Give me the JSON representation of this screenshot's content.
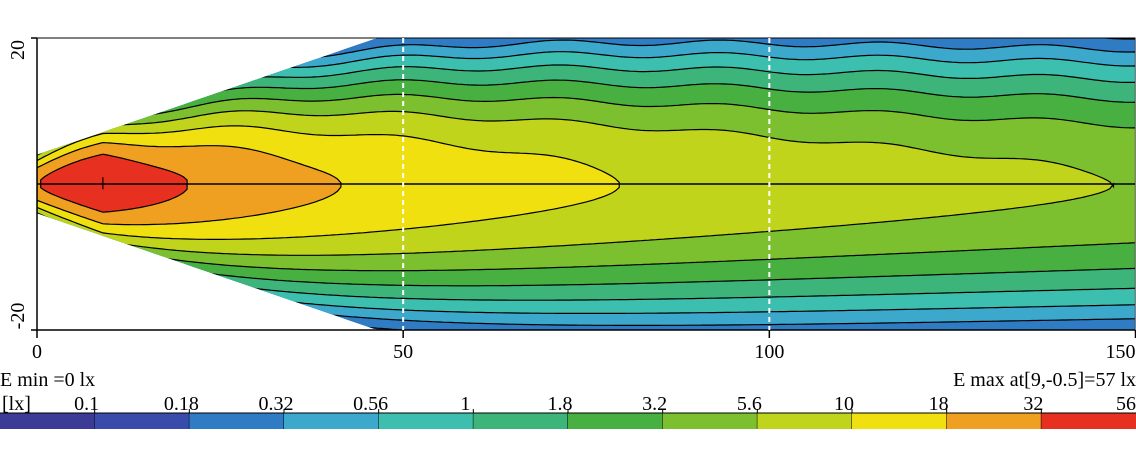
{
  "chart_data": {
    "type": "heatmap",
    "xlim": [
      0,
      150
    ],
    "ylim": [
      -20,
      20
    ],
    "xticks": [
      0,
      50,
      100,
      150
    ],
    "yticks": [
      -20,
      20
    ],
    "emin_text": "E min =0 lx",
    "emax_text": "E max at[9,-0.5]=57 lx",
    "unit": "[lx]",
    "levels": [
      0.1,
      0.18,
      0.32,
      0.56,
      1,
      1.8,
      3.2,
      5.6,
      10,
      18,
      32,
      56
    ],
    "colors": [
      "#3c3c96",
      "#3a4cab",
      "#2f7cc4",
      "#3ca8cc",
      "#3dbfaf",
      "#3db47a",
      "#48b040",
      "#7cc030",
      "#c0d41c",
      "#f0e010",
      "#f0a020",
      "#e83020"
    ]
  }
}
